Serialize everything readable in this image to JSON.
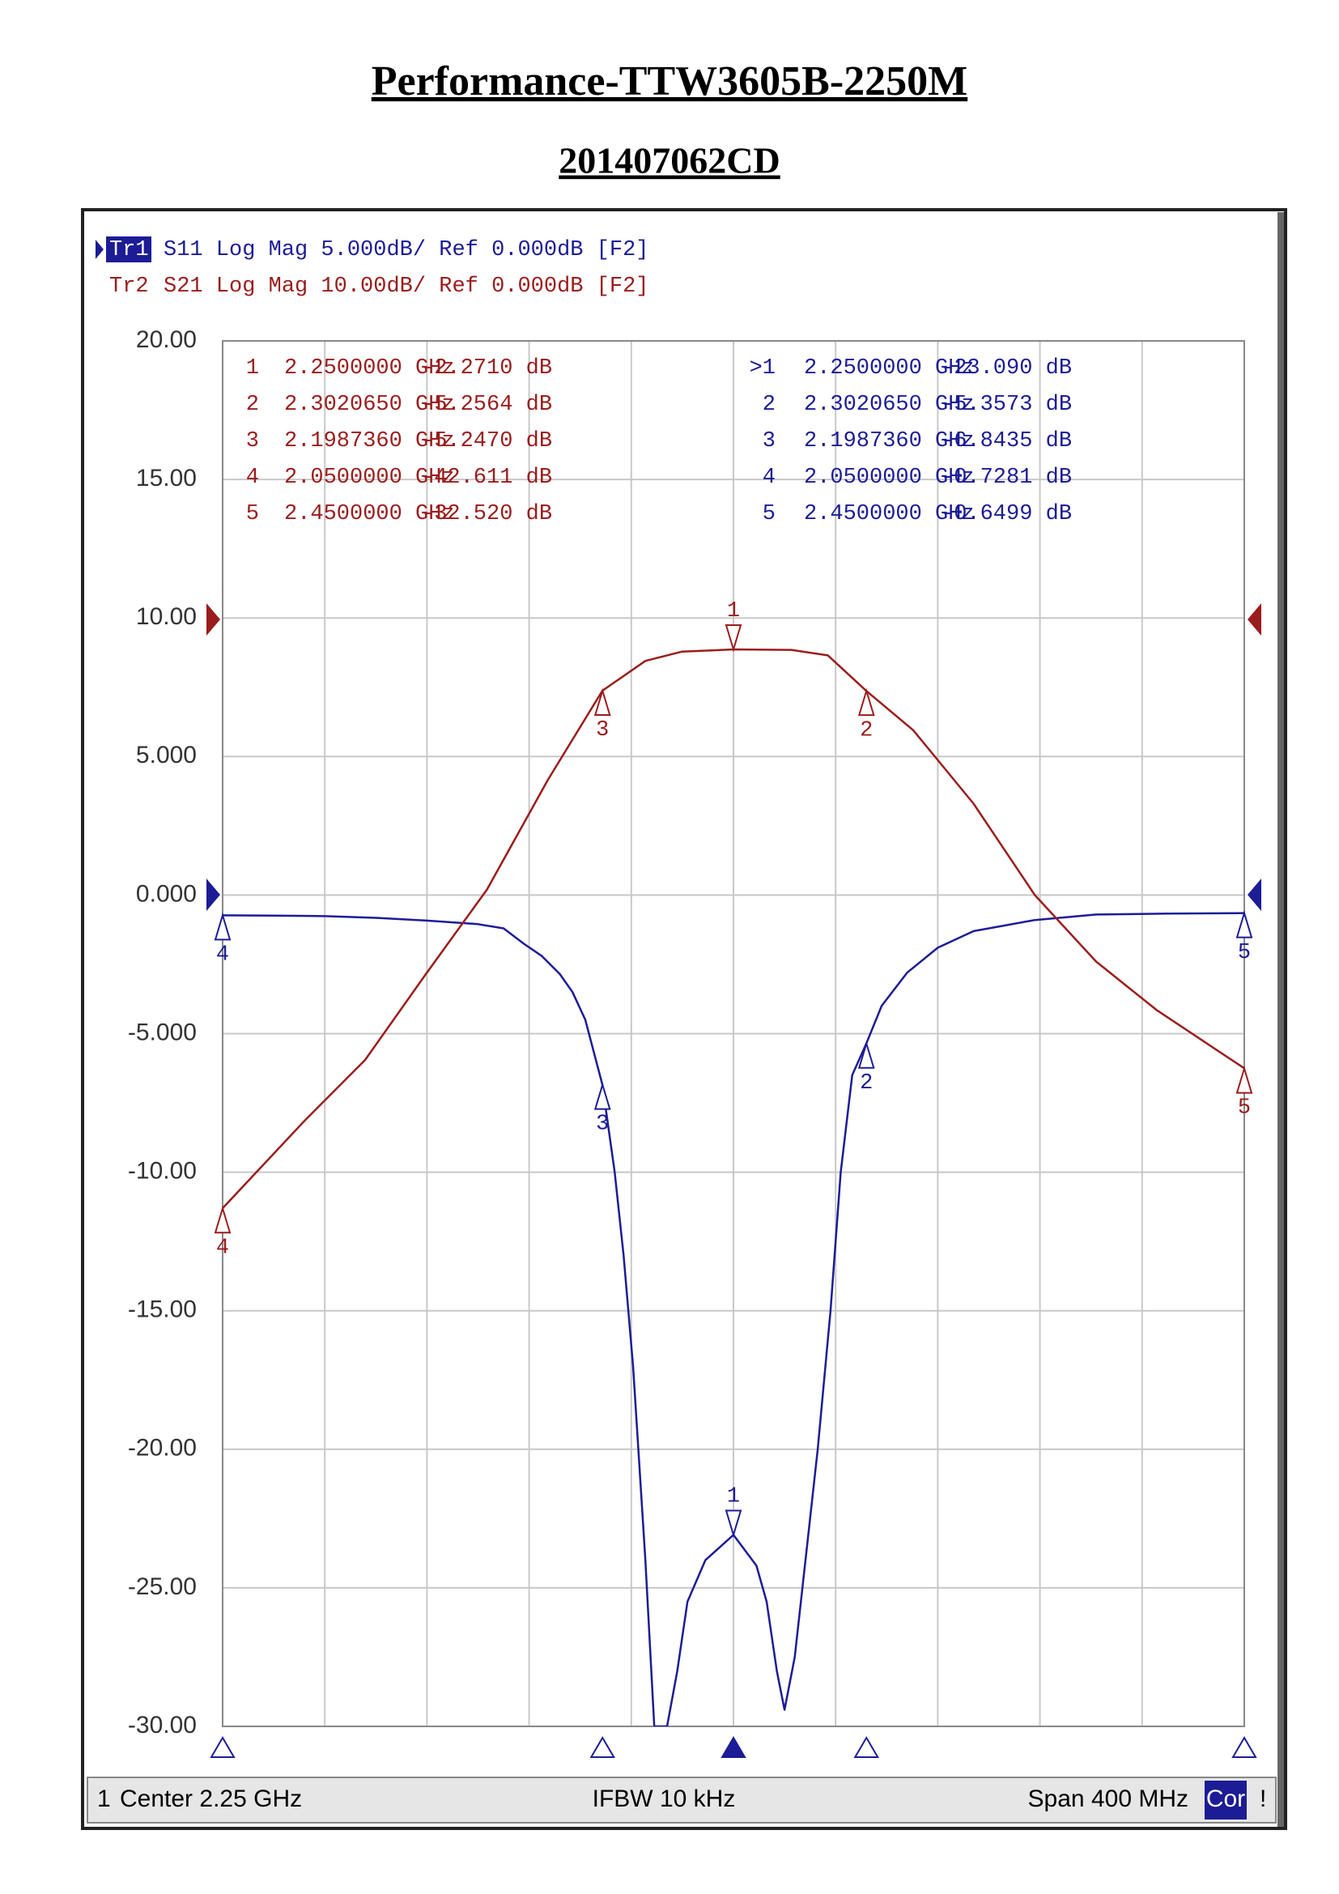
{
  "chart_data": {
    "type": "line",
    "title": "Performance-TTW3605B-2250M",
    "subtitle": "201407062CD",
    "xlim": [
      2.05,
      2.45
    ],
    "ylim": [
      -30,
      20
    ],
    "y2lim": [
      -80,
      20
    ],
    "yticks": [
      {
        "value": 20,
        "label": "20.00"
      },
      {
        "value": 15,
        "label": "15.00"
      },
      {
        "value": 10,
        "label": "10.00"
      },
      {
        "value": 5,
        "label": "5.000"
      },
      {
        "value": 0,
        "label": "0.000"
      },
      {
        "value": -5,
        "label": "-5.000"
      },
      {
        "value": -10,
        "label": "-10.00"
      },
      {
        "value": -15,
        "label": "-15.00"
      },
      {
        "value": -20,
        "label": "-20.00"
      },
      {
        "value": -25,
        "label": "-25.00"
      },
      {
        "value": -30,
        "label": "-30.00"
      }
    ],
    "xticks": [
      2.05,
      2.09,
      2.13,
      2.17,
      2.21,
      2.25,
      2.29,
      2.33,
      2.37,
      2.41,
      2.45
    ],
    "grid": true,
    "series": [
      {
        "name": "Tr1",
        "label": "S11 Log Mag 5.000dB/ Ref 0.000dB [F2]",
        "color": "#1c1c96",
        "x": [
          2.05,
          2.07,
          2.09,
          2.11,
          2.13,
          2.15,
          2.16,
          2.168,
          2.175,
          2.182,
          2.187,
          2.192,
          2.1987,
          2.2035,
          2.207,
          2.2107,
          2.2155,
          2.219,
          2.224,
          2.228,
          2.232,
          2.239,
          2.25,
          2.259,
          2.263,
          2.267,
          2.27,
          2.274,
          2.277,
          2.283,
          2.288,
          2.292,
          2.2965,
          2.302,
          2.308,
          2.318,
          2.33,
          2.344,
          2.368,
          2.392,
          2.42,
          2.45
        ],
        "values": [
          -0.73,
          -0.74,
          -0.76,
          -0.82,
          -0.92,
          -1.05,
          -1.2,
          -1.76,
          -2.2,
          -2.85,
          -3.5,
          -4.5,
          -6.84,
          -10,
          -13,
          -17,
          -24,
          -30,
          -30,
          -28,
          -25.5,
          -24,
          -23.09,
          -24.2,
          -25.5,
          -28,
          -29.4,
          -27.5,
          -25,
          -20,
          -15,
          -10,
          -6.5,
          -5.36,
          -4,
          -2.8,
          -1.9,
          -1.3,
          -0.9,
          -0.7,
          -0.67,
          -0.65
        ],
        "markers": [
          {
            "label": "1",
            "x": 2.25,
            "y": -23.09
          },
          {
            "label": "2",
            "x": 2.302065,
            "y": -5.3573
          },
          {
            "label": "3",
            "x": 2.198736,
            "y": -6.8435
          },
          {
            "label": "4",
            "x": 2.05,
            "y": -0.7281
          },
          {
            "label": "5",
            "x": 2.45,
            "y": -0.6499
          }
        ]
      },
      {
        "name": "Tr2",
        "label": "S21 Log Mag 10.00dB/ Ref 0.000dB [F2]",
        "color": "#9b1c1c",
        "axis": "y2",
        "x": [
          2.05,
          2.082,
          2.1058,
          2.1296,
          2.1535,
          2.1773,
          2.1987,
          2.2155,
          2.2297,
          2.25,
          2.2727,
          2.287,
          2.302,
          2.3204,
          2.344,
          2.368,
          2.392,
          2.4157,
          2.45
        ],
        "values": [
          -42.6,
          -36.3,
          -31.9,
          -25.7,
          -19.6,
          -11.7,
          -5.25,
          -3.1,
          -2.43,
          -2.27,
          -2.3,
          -2.7,
          -5.26,
          -8.1,
          -13.4,
          -20,
          -24.8,
          -28.3,
          -32.5
        ],
        "markers": [
          {
            "label": "1",
            "x": 2.25,
            "y": -2.271
          },
          {
            "label": "2",
            "x": 2.302065,
            "y": -5.2564
          },
          {
            "label": "3",
            "x": 2.198736,
            "y": -5.247
          },
          {
            "label": "4",
            "x": 2.05,
            "y": -42.611
          },
          {
            "label": "5",
            "x": 2.45,
            "y": -32.52
          }
        ]
      }
    ]
  },
  "marker_tables": [
    {
      "color": "#9b1c1c",
      "rows": [
        [
          "1",
          "2.2500000 GHz",
          "-2.2710 dB"
        ],
        [
          "2",
          "2.3020650 GHz",
          "-5.2564 dB"
        ],
        [
          "3",
          "2.1987360 GHz",
          "-5.2470 dB"
        ],
        [
          "4",
          "2.0500000 GHz",
          "-42.611 dB"
        ],
        [
          "5",
          "2.4500000 GHz",
          "-32.520 dB"
        ]
      ]
    },
    {
      "color": "#1c1c96",
      "rows": [
        [
          ">1",
          "2.2500000 GHz",
          "-23.090 dB"
        ],
        [
          "2",
          "2.3020650 GHz",
          "-5.3573 dB"
        ],
        [
          "3",
          "2.1987360 GHz",
          "-6.8435 dB"
        ],
        [
          "4",
          "2.0500000 GHz",
          "-0.7281 dB"
        ],
        [
          "5",
          "2.4500000 GHz",
          "-0.6499 dB"
        ]
      ]
    }
  ],
  "footer": {
    "channel": "1",
    "center": "Center 2.25 GHz",
    "ifbw": "IFBW 10 kHz",
    "span": "Span 400 MHz",
    "cor": "Cor",
    "flag": "!"
  }
}
